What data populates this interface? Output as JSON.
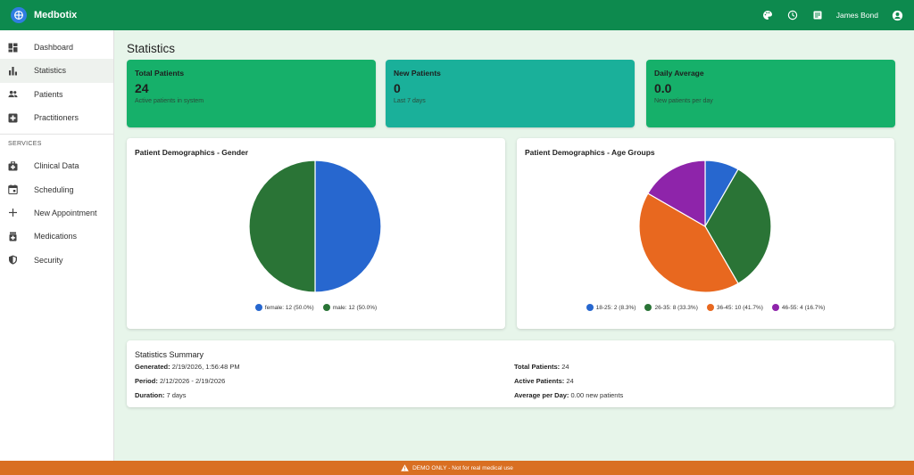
{
  "header": {
    "app_title": "Medbotix",
    "user_name": "James Bond",
    "icons": [
      "palette-icon",
      "clock-icon",
      "notes-icon",
      "account-icon"
    ]
  },
  "sidebar": {
    "items": [
      {
        "label": "Dashboard",
        "icon": "dashboard-icon"
      },
      {
        "label": "Statistics",
        "icon": "bar-chart-icon",
        "active": true
      },
      {
        "label": "Patients",
        "icon": "people-icon"
      },
      {
        "label": "Practitioners",
        "icon": "medical-plus-icon"
      }
    ],
    "section_label": "SERVICES",
    "service_items": [
      {
        "label": "Clinical Data",
        "icon": "medical-bag-icon"
      },
      {
        "label": "Scheduling",
        "icon": "calendar-icon"
      },
      {
        "label": "New Appointment",
        "icon": "plus-icon"
      },
      {
        "label": "Medications",
        "icon": "medication-icon"
      },
      {
        "label": "Security",
        "icon": "shield-icon"
      }
    ]
  },
  "page": {
    "title": "Statistics"
  },
  "cards": [
    {
      "title": "Total Patients",
      "value": "24",
      "subtitle": "Active patients in system",
      "color": "#16b06a"
    },
    {
      "title": "New Patients",
      "value": "0",
      "subtitle": "Last 7 days",
      "color": "#1ab09a"
    },
    {
      "title": "Daily Average",
      "value": "0.0",
      "subtitle": "New patients per day",
      "color": "#16b06a"
    }
  ],
  "chart_data": [
    {
      "type": "pie",
      "title": "Patient Demographics - Gender",
      "slices": [
        {
          "label": "female: 12 (50.0%)",
          "value": 12,
          "color": "#2767cf"
        },
        {
          "label": "male: 12 (50.0%)",
          "value": 12,
          "color": "#2a7436"
        }
      ],
      "legend": "bottom"
    },
    {
      "type": "pie",
      "title": "Patient Demographics - Age Groups",
      "slices": [
        {
          "label": "18-25: 2 (8.3%)",
          "value": 2,
          "color": "#2767cf"
        },
        {
          "label": "26-35: 8 (33.3%)",
          "value": 8,
          "color": "#2a7436"
        },
        {
          "label": "36-45: 10 (41.7%)",
          "value": 10,
          "color": "#e8681f"
        },
        {
          "label": "46-55: 4 (16.7%)",
          "value": 4,
          "color": "#8e24aa"
        }
      ],
      "legend": "bottom"
    }
  ],
  "summary": {
    "title": "Statistics Summary",
    "left": [
      {
        "label": "Generated:",
        "value": "2/19/2026, 1:56:48 PM"
      },
      {
        "label": "Period:",
        "value": "2/12/2026 - 2/19/2026"
      },
      {
        "label": "Duration:",
        "value": "7 days"
      }
    ],
    "right": [
      {
        "label": "Total Patients:",
        "value": "24"
      },
      {
        "label": "Active Patients:",
        "value": "24"
      },
      {
        "label": "Average per Day:",
        "value": "0.00 new patients"
      }
    ]
  },
  "footer": {
    "text": "DEMO ONLY - Not for real medical use"
  }
}
